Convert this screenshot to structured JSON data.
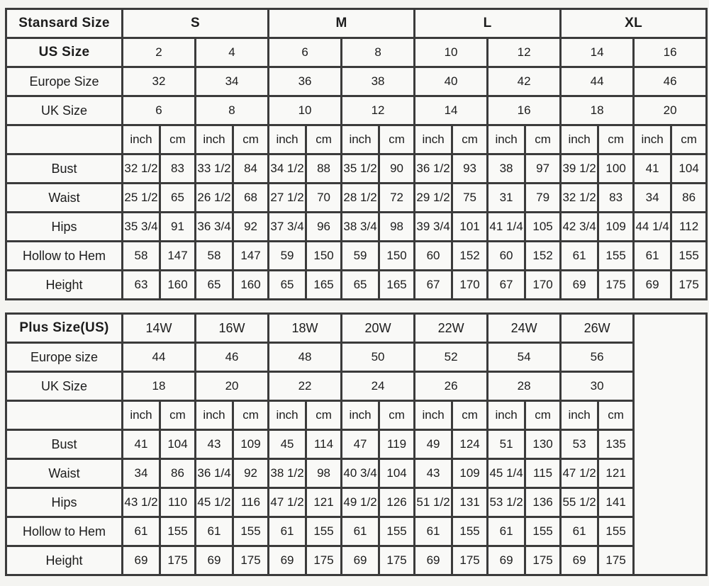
{
  "colors": {
    "border": "#3b3b3b",
    "cell_bg": "#f9f9f7",
    "page_bg": "#f4f4f1",
    "text": "#1c1c1c"
  },
  "standard_table": {
    "corner_label": "Stansard Size",
    "groups": [
      "S",
      "M",
      "L",
      "XL"
    ],
    "size_rows": [
      {
        "label": "US Size",
        "bold": true,
        "values": [
          "2",
          "4",
          "6",
          "8",
          "10",
          "12",
          "14",
          "16"
        ]
      },
      {
        "label": "Europe Size",
        "bold": false,
        "values": [
          "32",
          "34",
          "36",
          "38",
          "40",
          "42",
          "44",
          "46"
        ]
      },
      {
        "label": "UK Size",
        "bold": false,
        "values": [
          "6",
          "8",
          "10",
          "12",
          "14",
          "16",
          "18",
          "20"
        ]
      }
    ],
    "unit_pair": [
      "inch",
      "cm"
    ],
    "measure_rows": [
      {
        "label": "Bust",
        "values": [
          "32 1/2",
          "83",
          "33 1/2",
          "84",
          "34 1/2",
          "88",
          "35 1/2",
          "90",
          "36 1/2",
          "93",
          "38",
          "97",
          "39 1/2",
          "100",
          "41",
          "104"
        ]
      },
      {
        "label": "Waist",
        "values": [
          "25 1/2",
          "65",
          "26 1/2",
          "68",
          "27 1/2",
          "70",
          "28 1/2",
          "72",
          "29 1/2",
          "75",
          "31",
          "79",
          "32 1/2",
          "83",
          "34",
          "86"
        ]
      },
      {
        "label": "Hips",
        "values": [
          "35 3/4",
          "91",
          "36 3/4",
          "92",
          "37 3/4",
          "96",
          "38 3/4",
          "98",
          "39 3/4",
          "101",
          "41 1/4",
          "105",
          "42 3/4",
          "109",
          "44 1/4",
          "112"
        ]
      },
      {
        "label": "Hollow to Hem",
        "values": [
          "58",
          "147",
          "58",
          "147",
          "59",
          "150",
          "59",
          "150",
          "60",
          "152",
          "60",
          "152",
          "61",
          "155",
          "61",
          "155"
        ]
      },
      {
        "label": "Height",
        "values": [
          "63",
          "160",
          "65",
          "160",
          "65",
          "165",
          "65",
          "165",
          "67",
          "170",
          "67",
          "170",
          "69",
          "175",
          "69",
          "175"
        ]
      }
    ]
  },
  "plus_table": {
    "corner_label": "Plus Size(US)",
    "groups": [
      "14W",
      "16W",
      "18W",
      "20W",
      "22W",
      "24W",
      "26W"
    ],
    "size_rows": [
      {
        "label": "Europe size",
        "bold": false,
        "values": [
          "44",
          "46",
          "48",
          "50",
          "52",
          "54",
          "56"
        ]
      },
      {
        "label": "UK Size",
        "bold": false,
        "values": [
          "18",
          "20",
          "22",
          "24",
          "26",
          "28",
          "30"
        ]
      }
    ],
    "unit_pair": [
      "inch",
      "cm"
    ],
    "measure_rows": [
      {
        "label": "Bust",
        "values": [
          "41",
          "104",
          "43",
          "109",
          "45",
          "114",
          "47",
          "119",
          "49",
          "124",
          "51",
          "130",
          "53",
          "135"
        ]
      },
      {
        "label": "Waist",
        "values": [
          "34",
          "86",
          "36 1/4",
          "92",
          "38 1/2",
          "98",
          "40 3/4",
          "104",
          "43",
          "109",
          "45 1/4",
          "115",
          "47 1/2",
          "121"
        ]
      },
      {
        "label": "Hips",
        "values": [
          "43 1/2",
          "110",
          "45 1/2",
          "116",
          "47 1/2",
          "121",
          "49 1/2",
          "126",
          "51 1/2",
          "131",
          "53 1/2",
          "136",
          "55 1/2",
          "141"
        ]
      },
      {
        "label": "Hollow to Hem",
        "values": [
          "61",
          "155",
          "61",
          "155",
          "61",
          "155",
          "61",
          "155",
          "61",
          "155",
          "61",
          "155",
          "61",
          "155"
        ]
      },
      {
        "label": "Height",
        "values": [
          "69",
          "175",
          "69",
          "175",
          "69",
          "175",
          "69",
          "175",
          "69",
          "175",
          "69",
          "175",
          "69",
          "175"
        ]
      }
    ]
  }
}
